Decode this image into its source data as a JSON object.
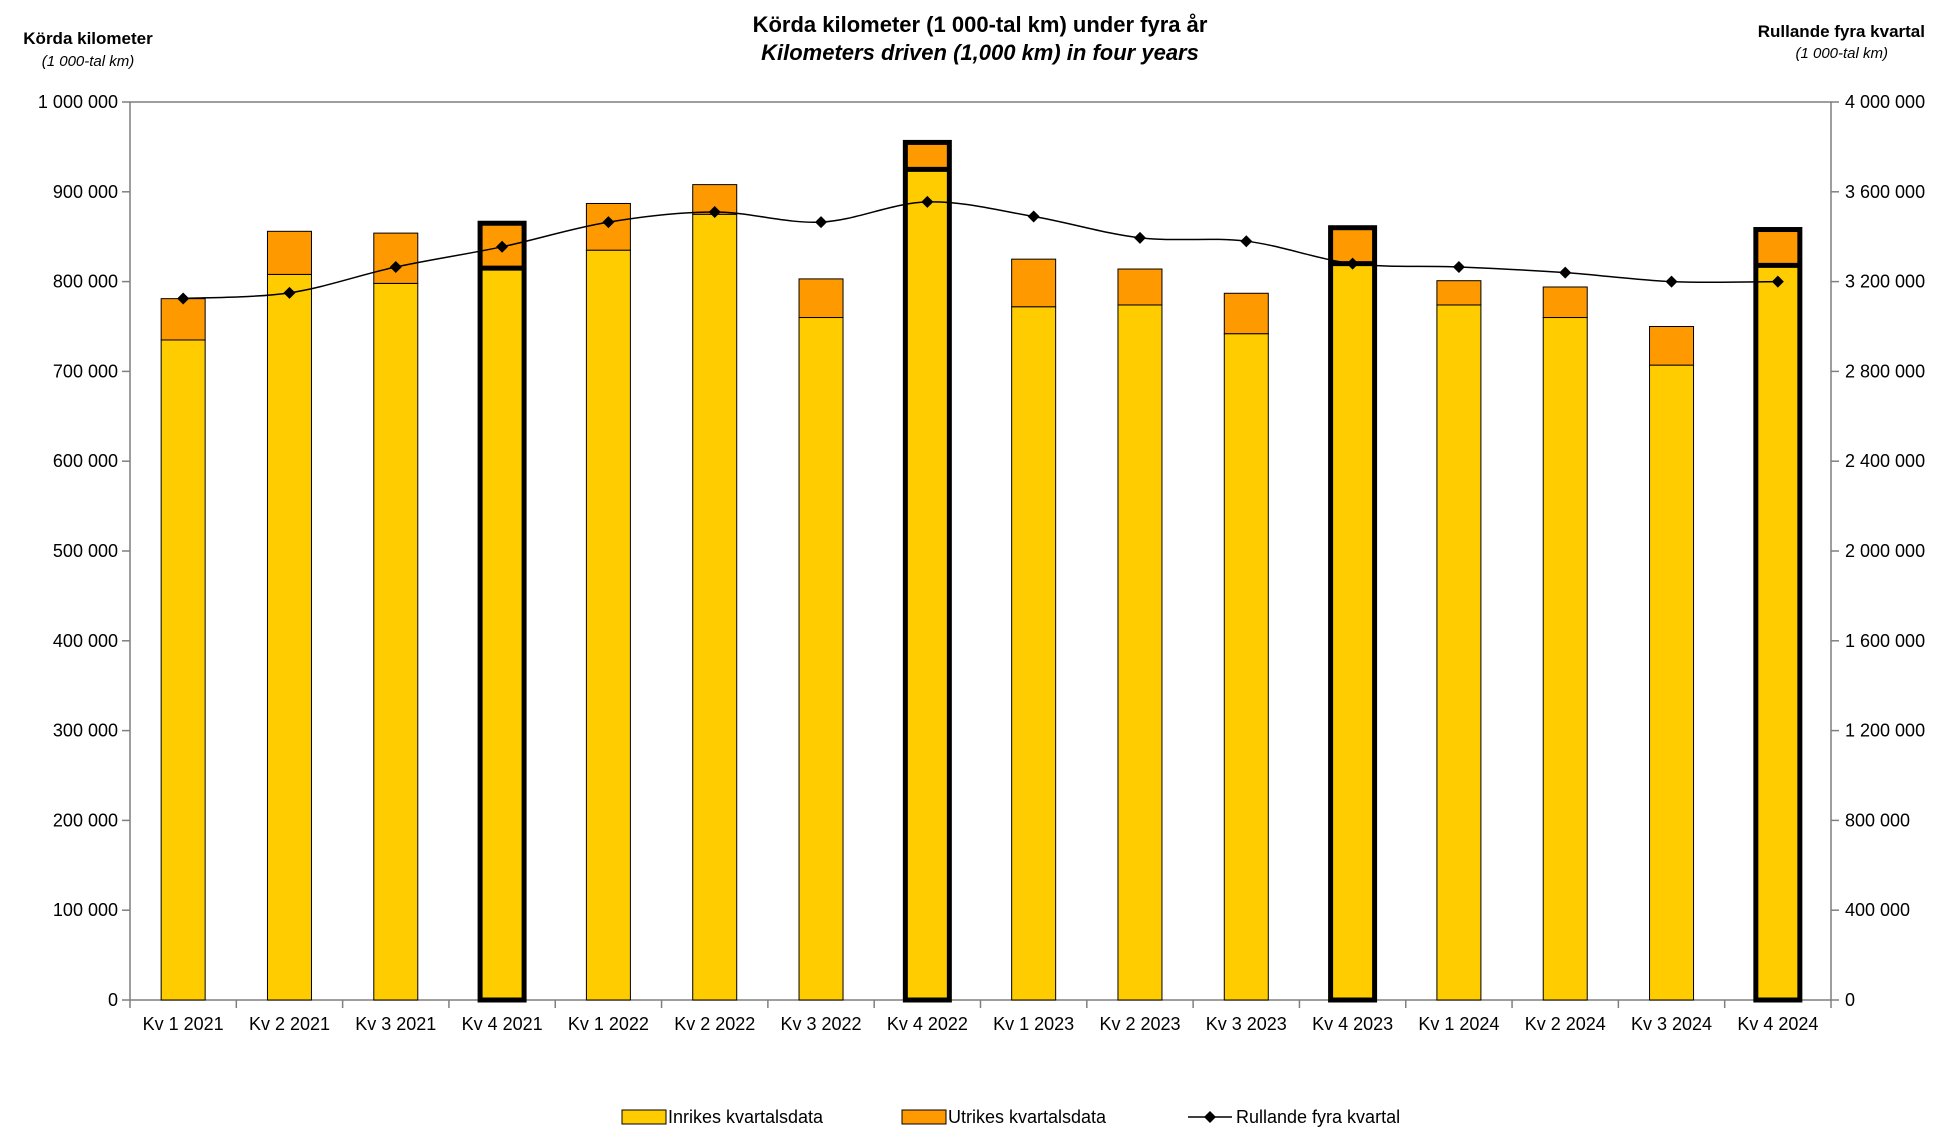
{
  "chart_data": {
    "type": "bar",
    "title": "Körda kilometer (1 000-tal km)  under fyra år",
    "subtitle": "Kilometers driven (1,000 km) in four years",
    "y_left_label": "Körda kilometer",
    "y_left_unit": "(1 000-tal km)",
    "y_right_label": "Rullande fyra kvartal",
    "y_right_unit": "(1 000-tal km)",
    "ylim_left": [
      0,
      1000000
    ],
    "ylim_right": [
      0,
      4000000
    ],
    "y_left_ticks": [
      "0",
      "100 000",
      "200 000",
      "300 000",
      "400 000",
      "500 000",
      "600 000",
      "700 000",
      "800 000",
      "900 000",
      "1 000 000"
    ],
    "y_right_ticks": [
      "0",
      "400 000",
      "800 000",
      "1 200 000",
      "1 600 000",
      "2 000 000",
      "2 400 000",
      "2 800 000",
      "3 200 000",
      "3 600 000",
      "4 000 000"
    ],
    "categories": [
      "Kv 1 2021",
      "Kv 2 2021",
      "Kv 3 2021",
      "Kv 4 2021",
      "Kv 1 2022",
      "Kv 2 2022",
      "Kv 3 2022",
      "Kv 4 2022",
      "Kv 1 2023",
      "Kv 2 2023",
      "Kv 3 2023",
      "Kv 4 2023",
      "Kv 1 2024",
      "Kv 2 2024",
      "Kv 3 2024",
      "Kv 4 2024"
    ],
    "highlighted": [
      3,
      7,
      11,
      15
    ],
    "series": [
      {
        "name": "Inrikes kvartalsdata",
        "kind": "stacked-bar",
        "color": "#FFCC00",
        "values": [
          735000,
          808000,
          798000,
          815000,
          835000,
          875000,
          760000,
          925000,
          772000,
          774000,
          742000,
          820000,
          774000,
          760000,
          707000,
          818000
        ]
      },
      {
        "name": "Utrikes kvartalsdata",
        "kind": "stacked-bar",
        "color": "#FF9900",
        "values": [
          46000,
          48000,
          56000,
          50000,
          52000,
          33000,
          43000,
          30000,
          53000,
          40000,
          45000,
          40000,
          27000,
          34000,
          43000,
          40000
        ]
      },
      {
        "name": "Rullande fyra kvartal",
        "kind": "line",
        "axis": "right",
        "color": "#000000",
        "values": [
          3125000,
          3150000,
          3265000,
          3355000,
          3465000,
          3510000,
          3465000,
          3555000,
          3490000,
          3395000,
          3380000,
          3280000,
          3265000,
          3240000,
          3200000,
          3200000
        ]
      }
    ],
    "legend_position": "bottom",
    "grid": false
  }
}
